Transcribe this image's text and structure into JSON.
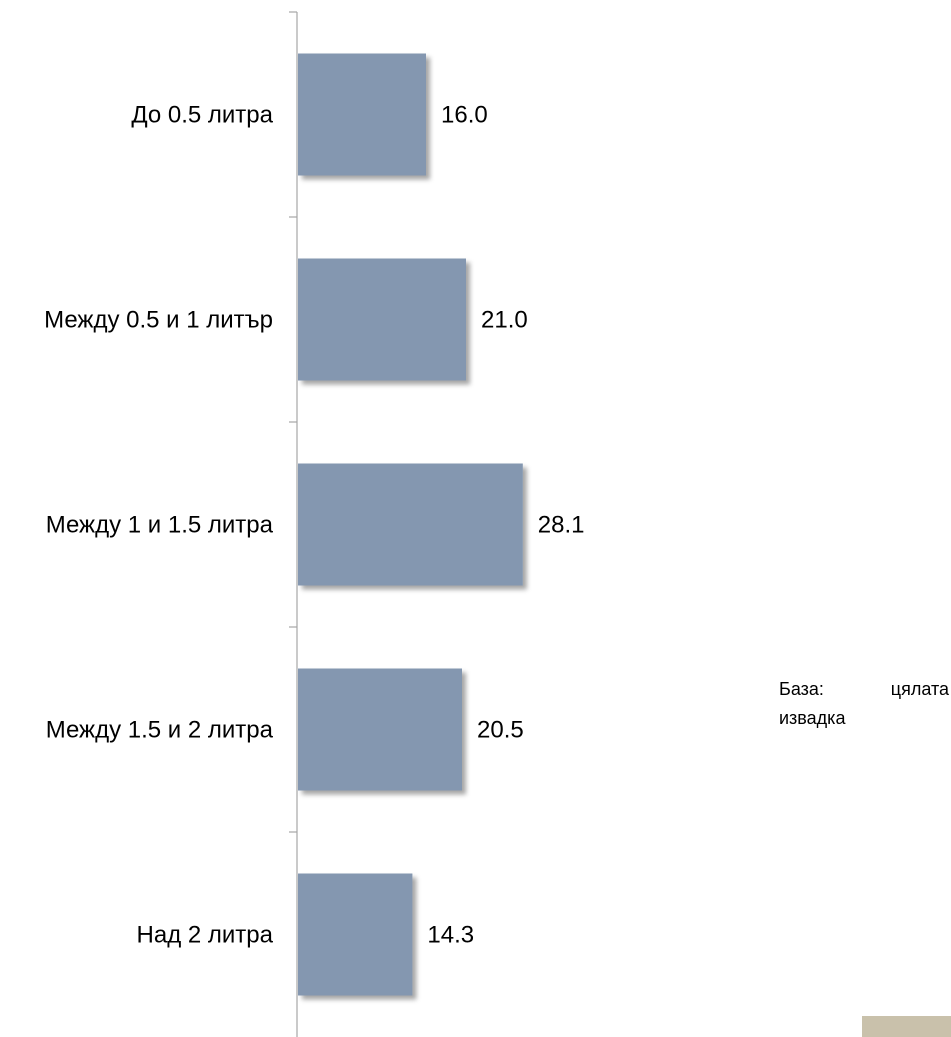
{
  "chart_data": {
    "type": "bar",
    "orientation": "horizontal",
    "categories": [
      "До 0.5 литра",
      "Между 0.5 и 1 литър",
      "Между 1 и 1.5 литра",
      "Между 1.5 и 2 литра",
      "Над 2 литра"
    ],
    "values": [
      16.0,
      21.0,
      28.1,
      20.5,
      14.3
    ],
    "value_labels": [
      "16.0",
      "21.0",
      "28.1",
      "20.5",
      "14.3"
    ],
    "xlim": [
      0,
      30
    ],
    "bar_color": "#8497b0",
    "grid": false,
    "legend": "none"
  },
  "note": {
    "word1": "База:",
    "word2": "цялата",
    "word3": "извадка"
  },
  "colors": {
    "axis": "#a6a6a6",
    "corner_box": "#c9c1ab"
  }
}
